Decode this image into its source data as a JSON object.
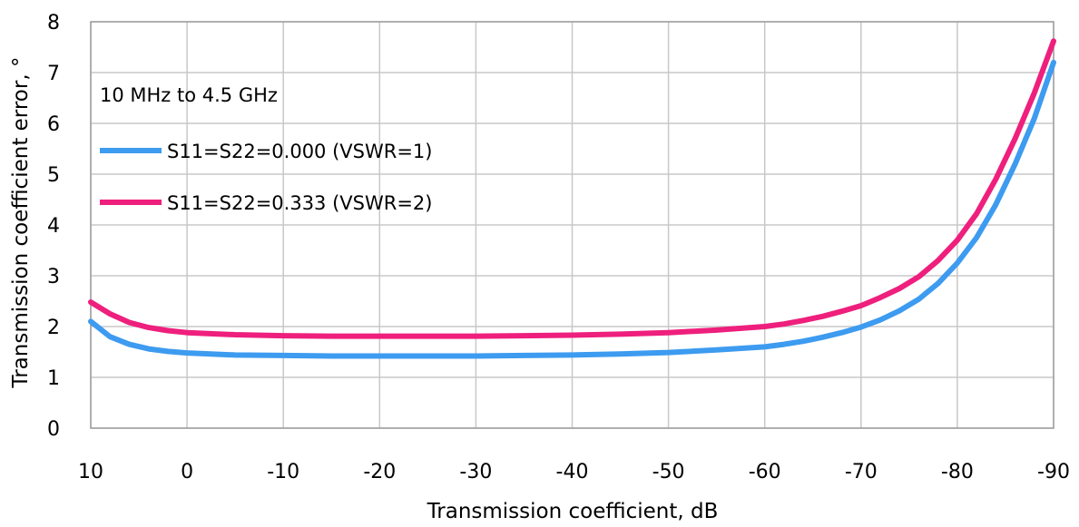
{
  "chart_data": {
    "type": "line",
    "title": "",
    "annotation": "10 MHz to 4.5 GHz",
    "xlabel": "Transmission coefficient, dB",
    "ylabel": "Transmission coefficient error, °",
    "xlim": [
      10,
      -90
    ],
    "ylim": [
      0,
      8
    ],
    "x_ticks": [
      10,
      0,
      -10,
      -20,
      -30,
      -40,
      -50,
      -60,
      -70,
      -80,
      -90
    ],
    "x_tick_labels": [
      "10",
      "0",
      "-10",
      "-20",
      "-30",
      "-40",
      "-50",
      "-60",
      "-70",
      "-80",
      "-90"
    ],
    "y_ticks": [
      0,
      1,
      2,
      3,
      4,
      5,
      6,
      7,
      8
    ],
    "y_tick_labels": [
      "0",
      "1",
      "2",
      "3",
      "4",
      "5",
      "6",
      "7",
      "8"
    ],
    "grid": true,
    "legend": "top-left",
    "x": [
      10,
      8,
      6,
      4,
      2,
      0,
      -5,
      -10,
      -15,
      -20,
      -25,
      -30,
      -35,
      -40,
      -45,
      -50,
      -55,
      -60,
      -62,
      -64,
      -66,
      -68,
      -70,
      -72,
      -74,
      -76,
      -78,
      -80,
      -82,
      -84,
      -86,
      -88,
      -90
    ],
    "series": [
      {
        "name": "S11=S22=0.000 (VSWR=1)",
        "color": "#3d9bf0",
        "values": [
          2.1,
          1.8,
          1.65,
          1.56,
          1.51,
          1.48,
          1.44,
          1.43,
          1.42,
          1.42,
          1.42,
          1.42,
          1.43,
          1.44,
          1.46,
          1.49,
          1.54,
          1.6,
          1.65,
          1.71,
          1.79,
          1.88,
          1.99,
          2.13,
          2.31,
          2.54,
          2.85,
          3.25,
          3.75,
          4.4,
          5.2,
          6.1,
          7.2
        ]
      },
      {
        "name": "S11=S22=0.333 (VSWR=2)",
        "color": "#ee1f7d",
        "values": [
          2.48,
          2.25,
          2.08,
          1.98,
          1.92,
          1.88,
          1.84,
          1.82,
          1.81,
          1.81,
          1.81,
          1.81,
          1.82,
          1.83,
          1.85,
          1.88,
          1.93,
          2.0,
          2.05,
          2.12,
          2.2,
          2.3,
          2.41,
          2.57,
          2.75,
          2.98,
          3.3,
          3.7,
          4.22,
          4.9,
          5.7,
          6.6,
          7.62
        ]
      }
    ]
  }
}
